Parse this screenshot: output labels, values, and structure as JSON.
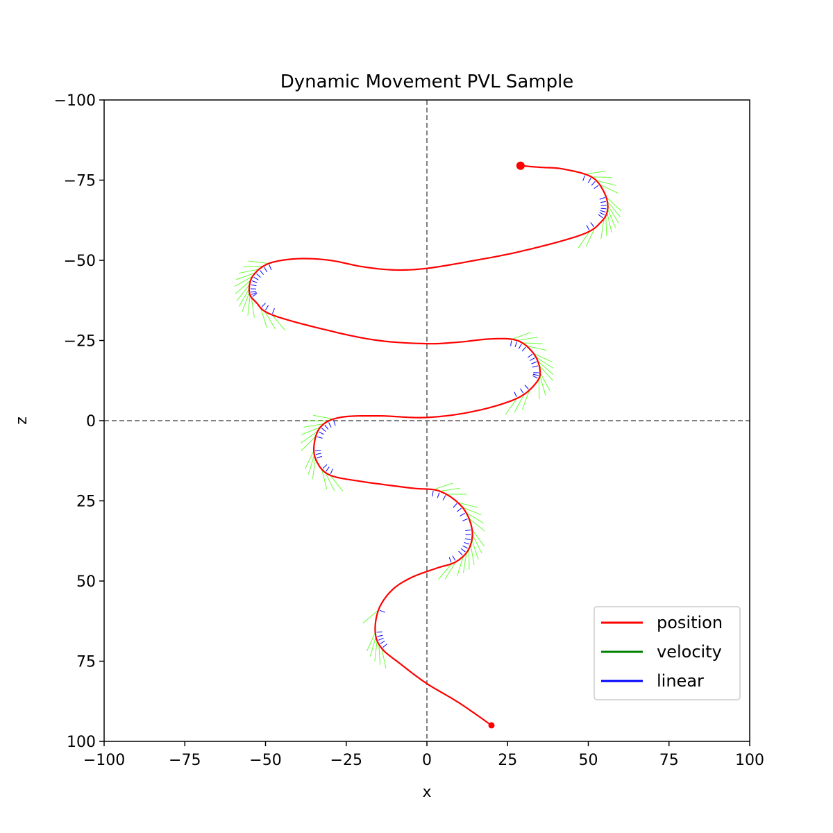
{
  "chart_data": {
    "type": "line",
    "title": "Dynamic Movement PVL Sample",
    "xlabel": "x",
    "ylabel": "z",
    "xlim": [
      -100,
      100
    ],
    "ylim": [
      100,
      -100
    ],
    "y_inverted": true,
    "xticks": [
      -100,
      -75,
      -50,
      -25,
      0,
      25,
      50,
      75,
      100
    ],
    "yticks": [
      -100,
      -75,
      -50,
      -25,
      0,
      25,
      50,
      75,
      100
    ],
    "xtick_labels": [
      "−100",
      "−75",
      "−50",
      "−25",
      "0",
      "25",
      "50",
      "75",
      "100"
    ],
    "ytick_labels": [
      "−100",
      "−75",
      "−50",
      "−25",
      "0",
      "25",
      "50",
      "75",
      "100"
    ],
    "reference_lines": {
      "x": 0,
      "y": 0,
      "style": "dashed",
      "color": "#808080"
    },
    "legend": {
      "placement": "bottom-right",
      "entries": [
        {
          "label": "position",
          "color": "#ff0000"
        },
        {
          "label": "velocity",
          "color": "#008000"
        },
        {
          "label": "linear",
          "color": "#0000ff"
        }
      ]
    },
    "series": [
      {
        "name": "position",
        "color": "#ff0000",
        "points": [
          [
            20,
            95
          ],
          [
            10,
            88
          ],
          [
            0,
            82
          ],
          [
            -8,
            76
          ],
          [
            -14,
            71
          ],
          [
            -16,
            66
          ],
          [
            -15,
            59
          ],
          [
            -11,
            53
          ],
          [
            -5,
            49
          ],
          [
            3,
            46
          ],
          [
            9,
            44
          ],
          [
            13,
            40
          ],
          [
            14,
            34
          ],
          [
            11,
            27
          ],
          [
            4,
            22
          ],
          [
            -5,
            21
          ],
          [
            -20,
            19
          ],
          [
            -30,
            17
          ],
          [
            -34,
            13
          ],
          [
            -35,
            8
          ],
          [
            -33,
            2
          ],
          [
            -27,
            -1
          ],
          [
            -15,
            -1.5
          ],
          [
            0,
            -1
          ],
          [
            15,
            -3
          ],
          [
            28,
            -7
          ],
          [
            34,
            -12
          ],
          [
            35,
            -16
          ],
          [
            33,
            -21
          ],
          [
            28,
            -25
          ],
          [
            20,
            -25.5
          ],
          [
            10,
            -24.5
          ],
          [
            0,
            -24
          ],
          [
            -15,
            -25
          ],
          [
            -30,
            -28
          ],
          [
            -48,
            -33
          ],
          [
            -53,
            -37
          ],
          [
            -55,
            -40
          ],
          [
            -54,
            -45
          ],
          [
            -49,
            -49
          ],
          [
            -40,
            -50.5
          ],
          [
            -30,
            -50
          ],
          [
            -20,
            -48
          ],
          [
            -10,
            -47
          ],
          [
            0,
            -47.5
          ],
          [
            15,
            -50
          ],
          [
            30,
            -53
          ],
          [
            48,
            -58
          ],
          [
            54,
            -62
          ],
          [
            56,
            -66
          ],
          [
            55,
            -71
          ],
          [
            51,
            -76
          ],
          [
            42,
            -78.5
          ],
          [
            35,
            -79
          ],
          [
            29,
            -79.5
          ]
        ],
        "start": [
          20,
          95
        ],
        "end": [
          29,
          -79.5
        ]
      }
    ],
    "vector_fields": [
      {
        "name": "velocity",
        "color": "#66ff33",
        "segments": "short tangent segments along the curved parts of the path"
      },
      {
        "name": "linear",
        "color": "#0000ff",
        "segments": "short normal dashes on the inside of each bend"
      }
    ]
  }
}
